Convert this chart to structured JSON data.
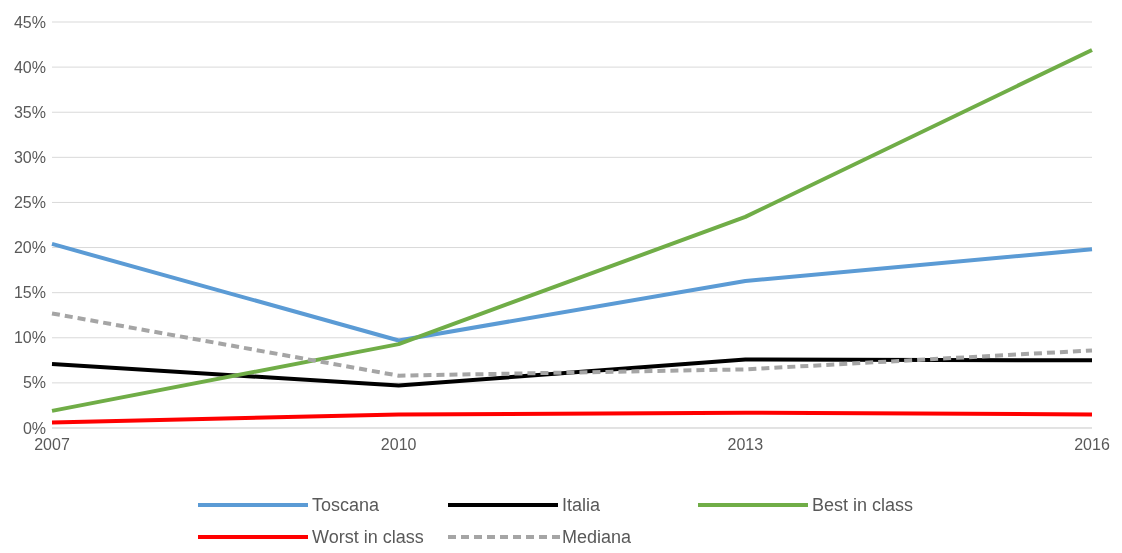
{
  "chart_data": {
    "type": "line",
    "x": [
      2007,
      2010,
      2013,
      2016
    ],
    "xlim": [
      2007,
      2016
    ],
    "xticks": [
      2007,
      2010,
      2013,
      2016
    ],
    "ylim": [
      0,
      0.45
    ],
    "yticks": [
      {
        "value": 0,
        "label": "0%"
      },
      {
        "value": 0.05,
        "label": "5%"
      },
      {
        "value": 0.1,
        "label": "10%"
      },
      {
        "value": 0.15,
        "label": "15%"
      },
      {
        "value": 0.2,
        "label": "20%"
      },
      {
        "value": 0.25,
        "label": "25%"
      },
      {
        "value": 0.3,
        "label": "30%"
      },
      {
        "value": 0.35,
        "label": "35%"
      },
      {
        "value": 0.4,
        "label": "40%"
      },
      {
        "value": 0.45,
        "label": "45%"
      }
    ],
    "grid": "y",
    "legend": "bottom",
    "marker": "none",
    "series": [
      {
        "name": "Toscana",
        "color": "#5b9bd5",
        "values": [
          0.204,
          0.097,
          0.163,
          0.198
        ]
      },
      {
        "name": "Italia",
        "color": "#000000",
        "values": [
          0.071,
          0.047,
          0.076,
          0.075
        ]
      },
      {
        "name": "Best in class",
        "color": "#70ad47",
        "values": [
          0.019,
          0.093,
          0.234,
          0.419
        ]
      },
      {
        "name": "Worst in class",
        "color": "#ff0000",
        "values": [
          0.006,
          0.015,
          0.017,
          0.015
        ]
      },
      {
        "name": "Mediana",
        "color": "#a5a5a5",
        "line_style": "dashed",
        "values": [
          0.127,
          0.058,
          0.065,
          0.086
        ]
      }
    ]
  }
}
